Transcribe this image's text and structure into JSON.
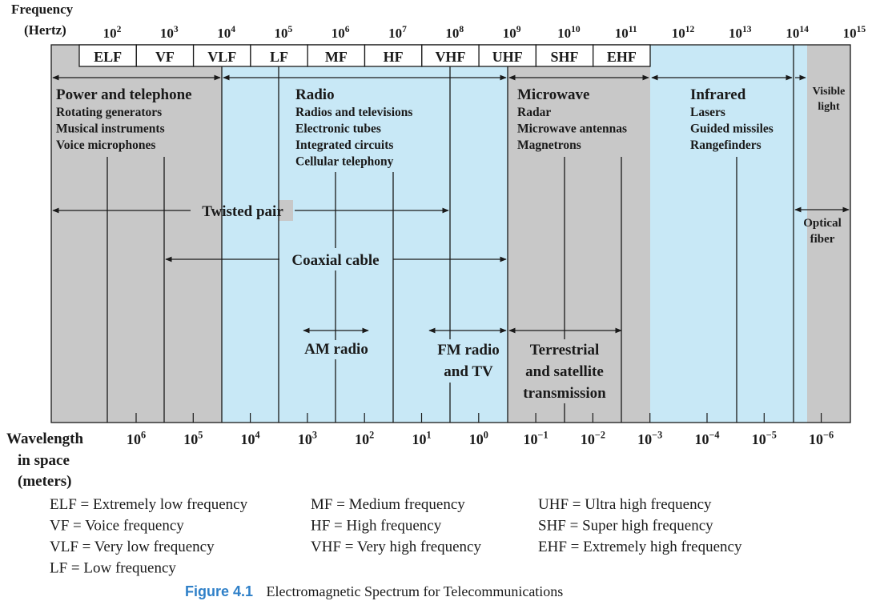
{
  "axis": {
    "freq_label_line1": "Frequency",
    "freq_label_line2": "(Hertz)",
    "freq_ticks": [
      {
        "base": "10",
        "exp": "2"
      },
      {
        "base": "10",
        "exp": "3"
      },
      {
        "base": "10",
        "exp": "4"
      },
      {
        "base": "10",
        "exp": "5"
      },
      {
        "base": "10",
        "exp": "6"
      },
      {
        "base": "10",
        "exp": "7"
      },
      {
        "base": "10",
        "exp": "8"
      },
      {
        "base": "10",
        "exp": "9"
      },
      {
        "base": "10",
        "exp": "10"
      },
      {
        "base": "10",
        "exp": "11"
      },
      {
        "base": "10",
        "exp": "12"
      },
      {
        "base": "10",
        "exp": "13"
      },
      {
        "base": "10",
        "exp": "14"
      },
      {
        "base": "10",
        "exp": "15"
      }
    ],
    "wave_label_line1": "Wavelength",
    "wave_label_line2": "in space",
    "wave_label_line3": "(meters)",
    "wave_ticks": [
      {
        "base": "10",
        "exp": "6"
      },
      {
        "base": "10",
        "exp": "5"
      },
      {
        "base": "10",
        "exp": "4"
      },
      {
        "base": "10",
        "exp": "3"
      },
      {
        "base": "10",
        "exp": "2"
      },
      {
        "base": "10",
        "exp": "1"
      },
      {
        "base": "10",
        "exp": "0"
      },
      {
        "base": "10",
        "exp": "−1"
      },
      {
        "base": "10",
        "exp": "−2"
      },
      {
        "base": "10",
        "exp": "−3"
      },
      {
        "base": "10",
        "exp": "−4"
      },
      {
        "base": "10",
        "exp": "−5"
      },
      {
        "base": "10",
        "exp": "−6"
      }
    ]
  },
  "bands": [
    "ELF",
    "VF",
    "VLF",
    "LF",
    "MF",
    "HF",
    "VHF",
    "UHF",
    "SHF",
    "EHF"
  ],
  "regions": {
    "power": {
      "title": "Power and telephone",
      "items": [
        "Rotating generators",
        "Musical instruments",
        "Voice microphones"
      ]
    },
    "radio": {
      "title": "Radio",
      "items": [
        "Radios and televisions",
        "Electronic tubes",
        "Integrated circuits",
        "Cellular telephony"
      ]
    },
    "microwave": {
      "title": "Microwave",
      "items": [
        "Radar",
        "Microwave antennas",
        "Magnetrons"
      ]
    },
    "infrared": {
      "title": "Infrared",
      "items": [
        "Lasers",
        "Guided missiles",
        "Rangefinders"
      ]
    },
    "visible": {
      "line1": "Visible",
      "line2": "light"
    }
  },
  "media": {
    "twisted_pair": "Twisted pair",
    "coaxial_cable": "Coaxial cable",
    "optical_fiber_line1": "Optical",
    "optical_fiber_line2": "fiber",
    "am_radio": "AM radio",
    "fm_line1": "FM radio",
    "fm_line2": "and TV",
    "terrestrial_line1": "Terrestrial",
    "terrestrial_line2": "and satellite",
    "terrestrial_line3": "transmission"
  },
  "legend": [
    [
      "ELF = Extremely low frequency",
      "VF = Voice frequency",
      "VLF = Very low frequency",
      "LF = Low frequency"
    ],
    [
      "MF = Medium frequency",
      "HF = High frequency",
      "VHF = Very high frequency"
    ],
    [
      "UHF = Ultra high frequency",
      "SHF = Super high frequency",
      "EHF = Extremely high frequency"
    ]
  ],
  "caption": {
    "number": "Figure 4.1",
    "text": "Electromagnetic Spectrum for Telecommunications"
  },
  "colors": {
    "gray": "#c8c8c8",
    "blue": "#c8e8f6",
    "line": "#1a1a1a",
    "caption_accent": "#2f80c8"
  }
}
